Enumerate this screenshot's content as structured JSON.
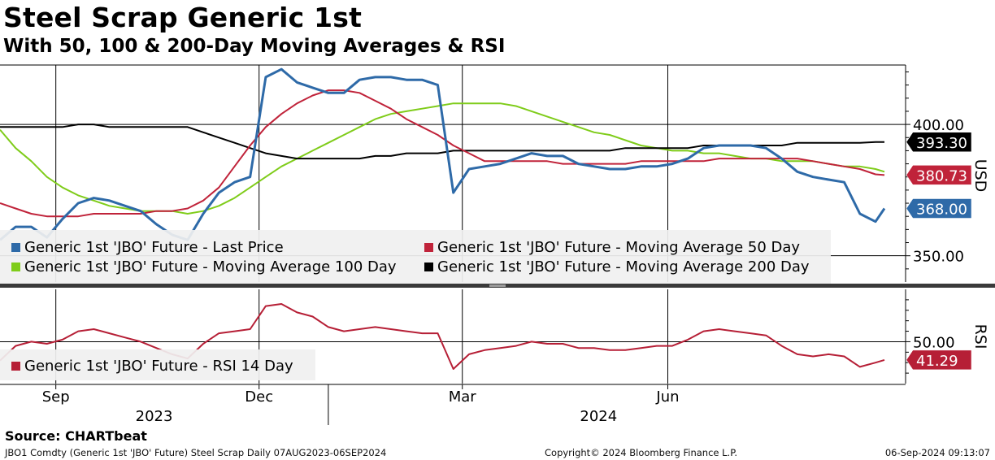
{
  "title": "Steel Scrap Generic 1st",
  "subtitle": "With 50, 100 & 200-Day Moving Averages & RSI",
  "source": "Source: CHARTbeat",
  "footer": {
    "left": "JBO1 Comdty (Generic 1st 'JBO' Future) Steel Scrap  Daily 07AUG2023-06SEP2024",
    "center": "Copyright© 2024 Bloomberg Finance L.P.",
    "right": "06-Sep-2024 09:13:07"
  },
  "colors": {
    "last_price": "#2e6aa8",
    "ma50": "#c0233a",
    "ma100": "#7fcc1a",
    "ma200": "#000000",
    "rsi": "#b61f36"
  },
  "chart_data": [
    {
      "type": "line",
      "panel": "price",
      "ylabel": "USD",
      "ylim": [
        340,
        422
      ],
      "yticks": [
        350,
        400
      ],
      "ytick_labels": [
        "350.00",
        "400.00"
      ],
      "x": [
        "2023-08-07",
        "2023-08-14",
        "2023-08-21",
        "2023-08-28",
        "2023-09-04",
        "2023-09-11",
        "2023-09-18",
        "2023-09-25",
        "2023-10-02",
        "2023-10-09",
        "2023-10-16",
        "2023-10-23",
        "2023-10-30",
        "2023-11-06",
        "2023-11-13",
        "2023-11-20",
        "2023-11-27",
        "2023-12-04",
        "2023-12-11",
        "2023-12-18",
        "2023-12-25",
        "2024-01-01",
        "2024-01-08",
        "2024-01-15",
        "2024-01-22",
        "2024-01-29",
        "2024-02-05",
        "2024-02-12",
        "2024-02-19",
        "2024-02-26",
        "2024-03-04",
        "2024-03-11",
        "2024-03-18",
        "2024-03-25",
        "2024-04-01",
        "2024-04-08",
        "2024-04-15",
        "2024-04-22",
        "2024-04-29",
        "2024-05-06",
        "2024-05-13",
        "2024-05-20",
        "2024-05-27",
        "2024-06-03",
        "2024-06-10",
        "2024-06-17",
        "2024-06-24",
        "2024-07-01",
        "2024-07-08",
        "2024-07-15",
        "2024-07-22",
        "2024-07-29",
        "2024-08-05",
        "2024-08-12",
        "2024-08-19",
        "2024-08-26",
        "2024-09-02",
        "2024-09-06"
      ],
      "series": [
        {
          "name": "Generic 1st 'JBO' Future - Last Price",
          "color": "#2e6aa8",
          "values": [
            356,
            361,
            361,
            357,
            364,
            370,
            372,
            371,
            369,
            367,
            362,
            358,
            356,
            366,
            374,
            378,
            380,
            418,
            421,
            416,
            414,
            412,
            412,
            417,
            418,
            418,
            417,
            417,
            415,
            374,
            383,
            384,
            385,
            387,
            389,
            388,
            388,
            385,
            384,
            383,
            383,
            384,
            384,
            385,
            387,
            391,
            392,
            392,
            392,
            391,
            387,
            382,
            380,
            379,
            378,
            366,
            363,
            368
          ]
        },
        {
          "name": "Generic 1st 'JBO' Future - Moving Average 50 Day",
          "color": "#c0233a",
          "values": [
            370,
            368,
            366,
            365,
            365,
            365,
            366,
            366,
            366,
            366,
            367,
            367,
            368,
            371,
            376,
            384,
            392,
            399,
            404,
            408,
            411,
            413,
            413,
            412,
            409,
            406,
            402,
            399,
            396,
            392,
            389,
            386,
            386,
            386,
            386,
            386,
            385,
            385,
            385,
            385,
            385,
            386,
            386,
            386,
            386,
            386,
            387,
            387,
            387,
            387,
            387,
            387,
            386,
            385,
            384,
            383,
            381,
            380.73
          ]
        },
        {
          "name": "Generic 1st 'JBO' Future - Moving Average 100 Day",
          "color": "#7fcc1a",
          "values": [
            398,
            391,
            386,
            380,
            376,
            373,
            371,
            369,
            368,
            367,
            367,
            367,
            366,
            367,
            369,
            372,
            376,
            380,
            384,
            387,
            390,
            393,
            396,
            399,
            402,
            404,
            405,
            406,
            407,
            408,
            408,
            408,
            408,
            407,
            405,
            403,
            401,
            399,
            397,
            396,
            394,
            392,
            391,
            390,
            390,
            389,
            389,
            388,
            387,
            387,
            386,
            386,
            386,
            385,
            384,
            384,
            383,
            382
          ]
        },
        {
          "name": "Generic 1st 'JBO' Future - Moving Average 200 Day",
          "color": "#000000",
          "values": [
            399,
            399,
            399,
            399,
            399,
            400,
            400,
            399,
            399,
            399,
            399,
            399,
            399,
            397,
            395,
            393,
            391,
            389,
            388,
            387,
            387,
            387,
            387,
            387,
            388,
            388,
            389,
            389,
            389,
            390,
            390,
            390,
            390,
            390,
            390,
            390,
            390,
            390,
            390,
            390,
            391,
            391,
            391,
            391,
            391,
            392,
            392,
            392,
            392,
            392,
            392,
            393,
            393,
            393,
            393,
            393,
            393.3,
            393.3
          ]
        }
      ],
      "last_value_labels": [
        {
          "series": "Generic 1st 'JBO' Future - Moving Average 200 Day",
          "text": "393.30",
          "value": 393.3,
          "bg": "#000000"
        },
        {
          "series": "Generic 1st 'JBO' Future - Moving Average 50 Day",
          "text": "380.73",
          "value": 380.73,
          "bg": "#c0233a"
        },
        {
          "series": "Generic 1st 'JBO' Future - Last Price",
          "text": "368.00",
          "value": 368.0,
          "bg": "#2e6aa8"
        }
      ],
      "legend": "bottom"
    },
    {
      "type": "line",
      "panel": "rsi",
      "ylabel": "RSI",
      "ylim": [
        30,
        75
      ],
      "yticks": [
        50
      ],
      "ytick_labels": [
        "50.00"
      ],
      "series": [
        {
          "name": "Generic 1st 'JBO' Future - RSI 14 Day",
          "color": "#b61f36",
          "values": [
            41,
            48,
            50,
            49,
            51,
            55,
            56,
            54,
            52,
            50,
            47,
            44,
            42,
            49,
            54,
            55,
            56,
            67,
            68,
            64,
            62,
            57,
            55,
            56,
            57,
            56,
            55,
            54,
            54,
            37,
            44,
            46,
            47,
            48,
            50,
            49,
            49,
            47,
            47,
            46,
            46,
            47,
            48,
            48,
            51,
            55,
            56,
            55,
            54,
            53,
            48,
            44,
            43,
            44,
            43,
            38,
            40,
            41.29
          ]
        }
      ],
      "last_value_labels": [
        {
          "series": "Generic 1st 'JBO' Future - RSI 14 Day",
          "text": "41.29",
          "value": 41.29,
          "bg": "#b61f36"
        }
      ],
      "legend": "bottom-left"
    }
  ],
  "x_axis": {
    "month_labels": [
      {
        "text": "Sep",
        "date": "2023-09-01"
      },
      {
        "text": "Dec",
        "date": "2023-12-01"
      },
      {
        "text": "Mar",
        "date": "2024-03-01"
      },
      {
        "text": "Jun",
        "date": "2024-06-01"
      }
    ],
    "year_labels": [
      {
        "text": "2023",
        "date": "2023-10-15"
      },
      {
        "text": "2024",
        "date": "2024-05-01"
      }
    ],
    "year_divider_date": "2024-01-01"
  }
}
